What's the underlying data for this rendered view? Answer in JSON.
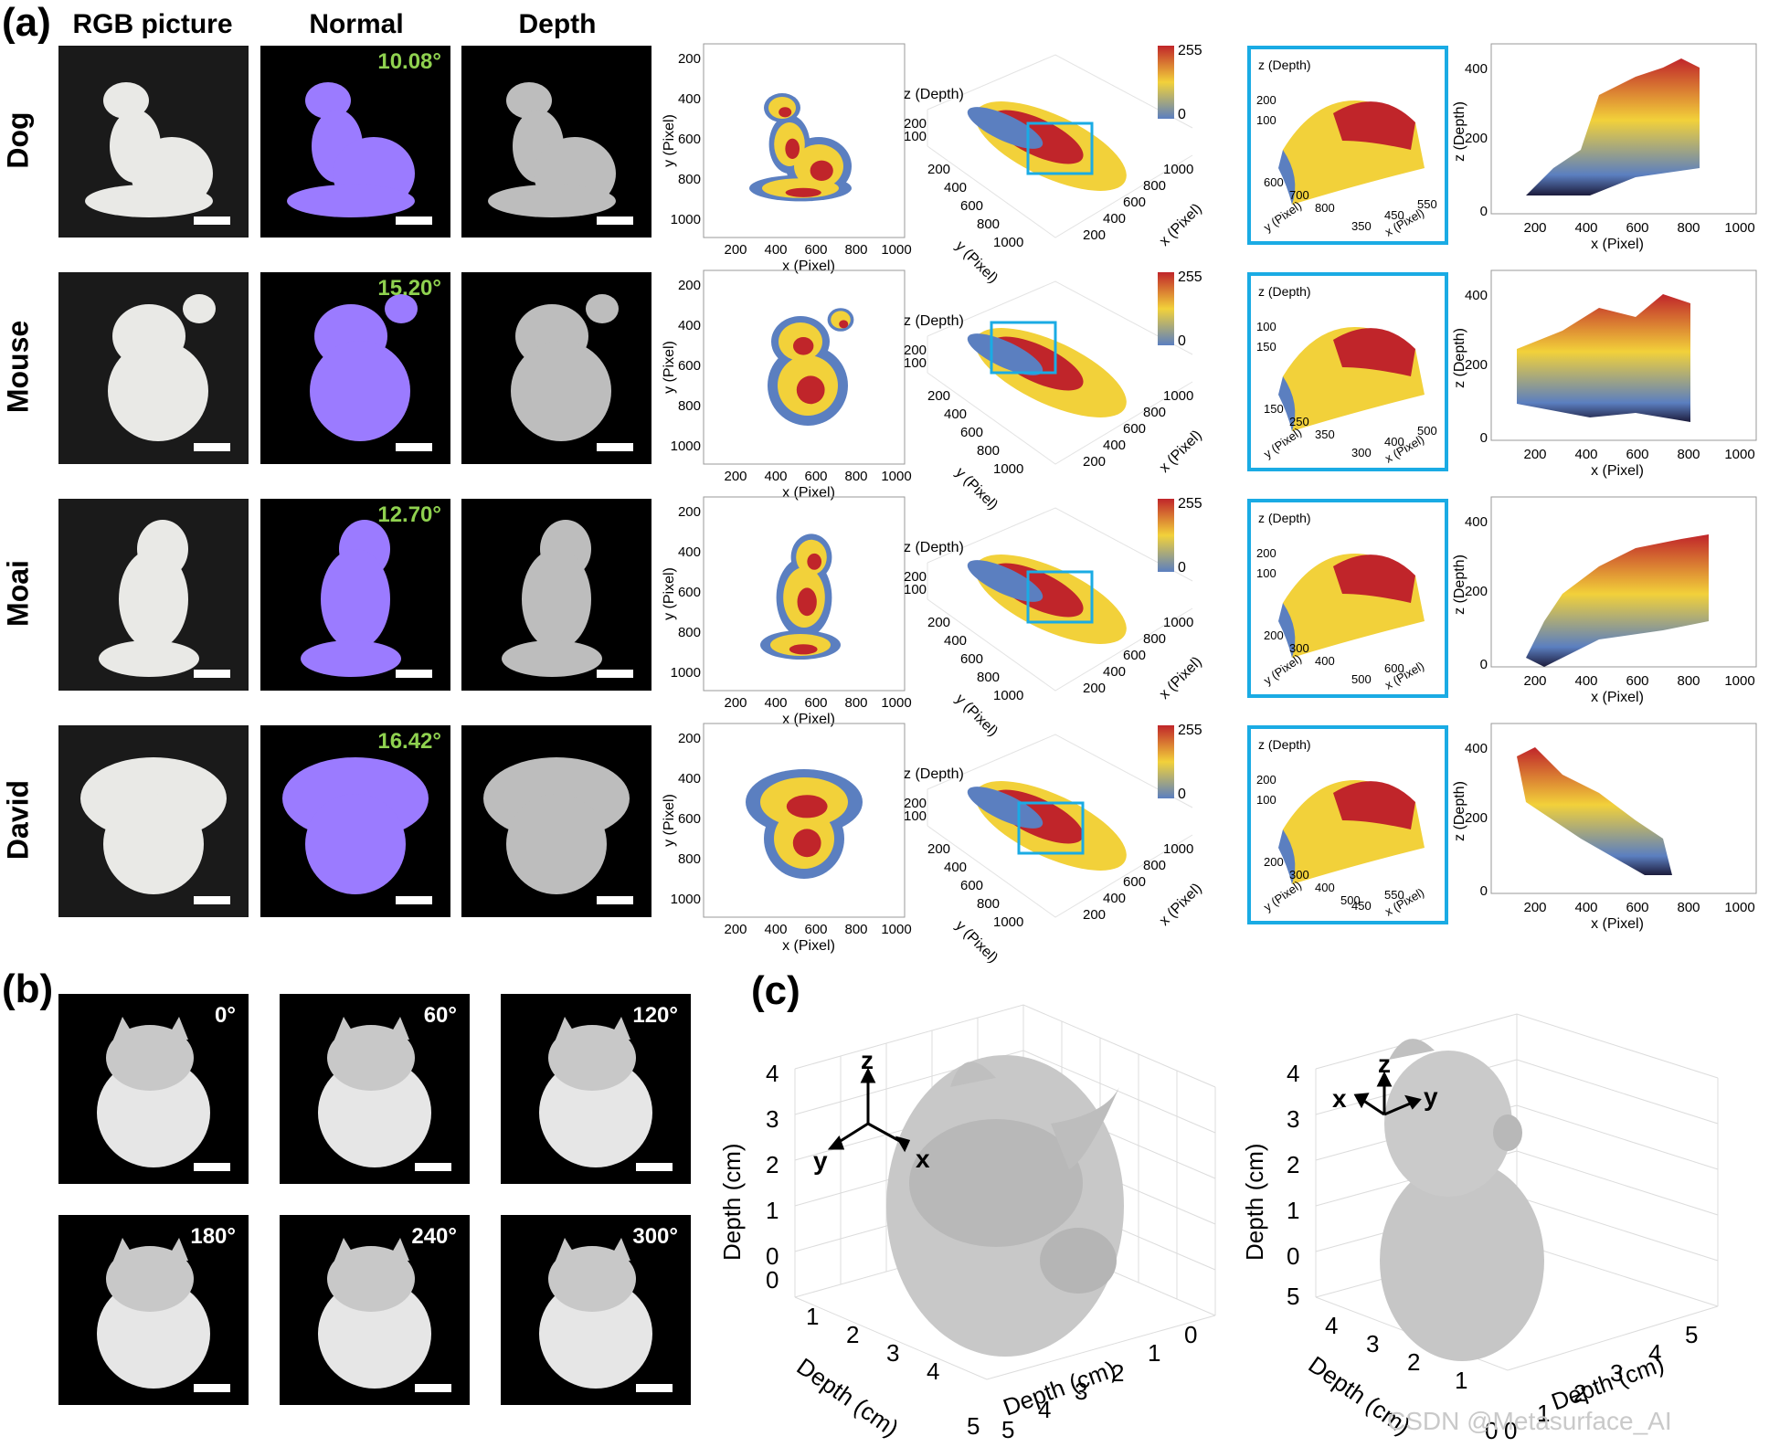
{
  "panel_labels": {
    "a": "(a)",
    "b": "(b)",
    "c": "(c)"
  },
  "columns": [
    "RGB picture",
    "Normal",
    "Depth"
  ],
  "rows": [
    {
      "name": "Dog",
      "angle": "10.08°"
    },
    {
      "name": "Mouse",
      "angle": "15.20°"
    },
    {
      "name": "Moai",
      "angle": "12.70°"
    },
    {
      "name": "David",
      "angle": "16.42°"
    }
  ],
  "axis_labels": {
    "x_pixel": "x (Pixel)",
    "y_pixel": "y (Pixel)",
    "z_depth": "z (Depth)",
    "depth_cm": "Depth (cm)"
  },
  "ticks": {
    "xy_2d": [
      "200",
      "400",
      "600",
      "800",
      "1000"
    ],
    "z_3d": [
      "200",
      "100"
    ],
    "colorbar": [
      "255",
      "0"
    ],
    "z_profile": [
      "400",
      "200",
      "0"
    ],
    "c_vertical": [
      "4",
      "3",
      "2",
      "1",
      "0"
    ],
    "c_horizontal": [
      "0",
      "1",
      "2",
      "3",
      "4",
      "5"
    ]
  },
  "insets": [
    {
      "y_ticks": [
        "600",
        "700",
        "800"
      ],
      "x_ticks": [
        "350",
        "450",
        "550"
      ],
      "z_ticks": [
        "200",
        "100"
      ]
    },
    {
      "y_ticks": [
        "150",
        "250",
        "350"
      ],
      "x_ticks": [
        "300",
        "400",
        "500"
      ],
      "z_ticks": [
        "100",
        "150"
      ]
    },
    {
      "y_ticks": [
        "200",
        "300",
        "400"
      ],
      "x_ticks": [
        "500",
        "600"
      ],
      "z_ticks": [
        "200",
        "100"
      ]
    },
    {
      "y_ticks": [
        "200",
        "300",
        "400",
        "500"
      ],
      "x_ticks": [
        "450",
        "550"
      ],
      "z_ticks": [
        "200",
        "100"
      ]
    }
  ],
  "panel_b_angles": [
    "0°",
    "60°",
    "120°",
    "180°",
    "240°",
    "300°"
  ],
  "axis_triads": {
    "left": {
      "z": "z",
      "y": "y",
      "x": "x"
    },
    "right": {
      "z": "z",
      "x": "x",
      "y": "y"
    }
  },
  "watermark": "CSDN @Metasurface_AI",
  "colors": {
    "accent_blue": "#1aabe4",
    "angle_green": "#8fd14f",
    "red": "#c0252a",
    "yellow": "#f2d13a",
    "blue": "#5b7fc0"
  }
}
